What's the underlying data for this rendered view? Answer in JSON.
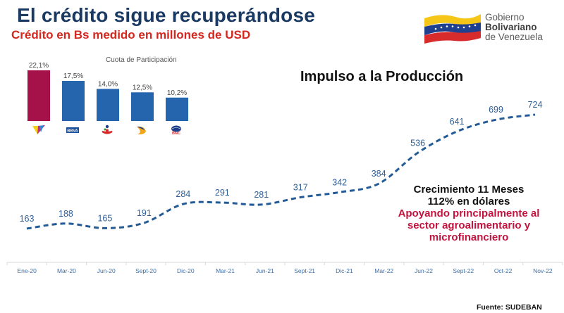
{
  "header": {
    "title": "El crédito sigue recuperándose",
    "subtitle": "Crédito en Bs medido en millones de USD"
  },
  "logo": {
    "icon": "venezuela-flag-icon",
    "line1": "Gobierno",
    "line2": "Bolivariano",
    "line3": "de Venezuela"
  },
  "note": {
    "line1": "Crecimiento 11 Meses",
    "line2": "112% en dólares",
    "line3": "Apoyando principalmente al",
    "line4": "sector agroalimentario y",
    "line5": "microfinanciero"
  },
  "source": "Fuente: SUDEBAN",
  "colors": {
    "title": "#1b3a63",
    "subtitle": "#d3281f",
    "bar_highlight": "#a5124a",
    "bar_default": "#2465ad",
    "line": "#235b96",
    "note_red": "#c4123e"
  },
  "chart_data": [
    {
      "type": "bar",
      "title": "Cuota de Participación",
      "categories": [
        "bank-1-logo",
        "BBVA",
        "bank-3-logo",
        "bank-4-logo",
        "BNC"
      ],
      "category_icons": [
        "multicolor-v-logo-icon",
        "bbva-logo-icon",
        "red-figure-logo-icon",
        "crescent-logo-icon",
        "bnc-globe-logo-icon"
      ],
      "values": [
        22.1,
        17.5,
        14.0,
        12.5,
        10.2
      ],
      "value_labels": [
        "22,1%",
        "17,5%",
        "14,0%",
        "12,5%",
        "10,2%"
      ],
      "unit": "%",
      "highlight_index": 0,
      "ylim": [
        0,
        25
      ]
    },
    {
      "type": "line",
      "title": "Impulso a la Producción",
      "style": "dashed-smooth",
      "categories": [
        "Ene-20",
        "Mar-20",
        "Jun-20",
        "Sept-20",
        "Dic-20",
        "Mar-21",
        "Jun-21",
        "Sept-21",
        "Dic-21",
        "Mar-22",
        "Jun-22",
        "Sept-22",
        "Oct-22",
        "Nov-22"
      ],
      "values": [
        163,
        188,
        165,
        191,
        284,
        291,
        281,
        317,
        342,
        384,
        536,
        641,
        699,
        724
      ],
      "xlabel": "",
      "ylabel": "Millones de USD",
      "ylim": [
        100,
        780
      ],
      "grid": false,
      "legend": "none"
    }
  ]
}
